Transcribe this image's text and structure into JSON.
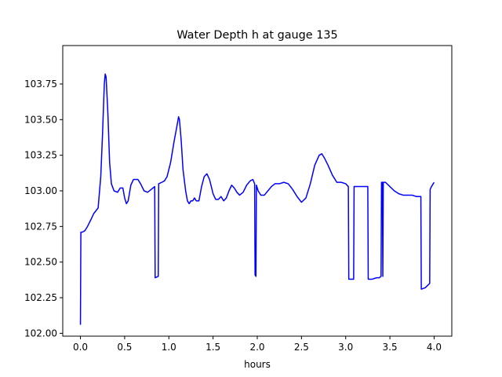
{
  "chart_data": {
    "type": "line",
    "title": "Water Depth h at gauge 135",
    "xlabel": "hours",
    "ylabel": "",
    "xlim": [
      -0.2,
      4.2
    ],
    "ylim": [
      101.98,
      104.02
    ],
    "xticks": [
      0.0,
      0.5,
      1.0,
      1.5,
      2.0,
      2.5,
      3.0,
      3.5,
      4.0
    ],
    "xtick_labels": [
      "0.0",
      "0.5",
      "1.0",
      "1.5",
      "2.0",
      "2.5",
      "3.0",
      "3.5",
      "4.0"
    ],
    "yticks": [
      102.0,
      102.25,
      102.5,
      102.75,
      103.0,
      103.25,
      103.5,
      103.75
    ],
    "ytick_labels": [
      "102.00",
      "102.25",
      "102.50",
      "102.75",
      "103.00",
      "103.25",
      "103.50",
      "103.75"
    ],
    "grid": false,
    "series": [
      {
        "color": "#0000ff",
        "points": [
          [
            0.0,
            102.06
          ],
          [
            0.005,
            102.71
          ],
          [
            0.02,
            102.71
          ],
          [
            0.05,
            102.72
          ],
          [
            0.08,
            102.75
          ],
          [
            0.12,
            102.8
          ],
          [
            0.15,
            102.84
          ],
          [
            0.2,
            102.88
          ],
          [
            0.23,
            103.1
          ],
          [
            0.25,
            103.4
          ],
          [
            0.27,
            103.75
          ],
          [
            0.28,
            103.82
          ],
          [
            0.29,
            103.8
          ],
          [
            0.31,
            103.55
          ],
          [
            0.33,
            103.2
          ],
          [
            0.35,
            103.05
          ],
          [
            0.38,
            103.0
          ],
          [
            0.42,
            102.99
          ],
          [
            0.45,
            103.02
          ],
          [
            0.48,
            103.02
          ],
          [
            0.5,
            102.95
          ],
          [
            0.52,
            102.91
          ],
          [
            0.54,
            102.93
          ],
          [
            0.57,
            103.04
          ],
          [
            0.6,
            103.08
          ],
          [
            0.65,
            103.08
          ],
          [
            0.68,
            103.05
          ],
          [
            0.72,
            103.0
          ],
          [
            0.76,
            102.99
          ],
          [
            0.8,
            103.01
          ],
          [
            0.84,
            103.03
          ],
          [
            0.845,
            102.39
          ],
          [
            0.88,
            102.4
          ],
          [
            0.885,
            103.05
          ],
          [
            0.92,
            103.06
          ],
          [
            0.95,
            103.07
          ],
          [
            0.98,
            103.1
          ],
          [
            1.02,
            103.2
          ],
          [
            1.06,
            103.35
          ],
          [
            1.09,
            103.45
          ],
          [
            1.11,
            103.52
          ],
          [
            1.12,
            103.5
          ],
          [
            1.14,
            103.35
          ],
          [
            1.16,
            103.15
          ],
          [
            1.19,
            103.0
          ],
          [
            1.21,
            102.93
          ],
          [
            1.23,
            102.91
          ],
          [
            1.25,
            102.93
          ],
          [
            1.27,
            102.93
          ],
          [
            1.29,
            102.95
          ],
          [
            1.31,
            102.93
          ],
          [
            1.34,
            102.93
          ],
          [
            1.37,
            103.03
          ],
          [
            1.4,
            103.1
          ],
          [
            1.43,
            103.12
          ],
          [
            1.46,
            103.08
          ],
          [
            1.5,
            102.98
          ],
          [
            1.53,
            102.94
          ],
          [
            1.56,
            102.94
          ],
          [
            1.59,
            102.96
          ],
          [
            1.62,
            102.93
          ],
          [
            1.65,
            102.95
          ],
          [
            1.68,
            103.0
          ],
          [
            1.71,
            103.04
          ],
          [
            1.74,
            103.02
          ],
          [
            1.77,
            102.99
          ],
          [
            1.8,
            102.97
          ],
          [
            1.84,
            102.99
          ],
          [
            1.88,
            103.04
          ],
          [
            1.92,
            103.07
          ],
          [
            1.95,
            103.08
          ],
          [
            1.97,
            103.05
          ],
          [
            1.975,
            102.41
          ],
          [
            1.985,
            102.4
          ],
          [
            1.99,
            103.04
          ],
          [
            2.01,
            103.0
          ],
          [
            2.04,
            102.97
          ],
          [
            2.08,
            102.97
          ],
          [
            2.12,
            103.0
          ],
          [
            2.16,
            103.03
          ],
          [
            2.2,
            103.05
          ],
          [
            2.25,
            103.05
          ],
          [
            2.3,
            103.06
          ],
          [
            2.35,
            103.05
          ],
          [
            2.4,
            103.01
          ],
          [
            2.45,
            102.96
          ],
          [
            2.5,
            102.92
          ],
          [
            2.55,
            102.95
          ],
          [
            2.6,
            103.05
          ],
          [
            2.65,
            103.18
          ],
          [
            2.7,
            103.25
          ],
          [
            2.73,
            103.26
          ],
          [
            2.76,
            103.23
          ],
          [
            2.8,
            103.18
          ],
          [
            2.85,
            103.11
          ],
          [
            2.9,
            103.06
          ],
          [
            2.95,
            103.06
          ],
          [
            3.0,
            103.05
          ],
          [
            3.03,
            103.03
          ],
          [
            3.035,
            102.38
          ],
          [
            3.09,
            102.38
          ],
          [
            3.095,
            103.03
          ],
          [
            3.15,
            103.03
          ],
          [
            3.2,
            103.03
          ],
          [
            3.25,
            103.03
          ],
          [
            3.255,
            102.38
          ],
          [
            3.3,
            102.38
          ],
          [
            3.35,
            102.39
          ],
          [
            3.38,
            102.39
          ],
          [
            3.4,
            102.4
          ],
          [
            3.405,
            103.06
          ],
          [
            3.415,
            103.06
          ],
          [
            3.42,
            102.4
          ],
          [
            3.425,
            103.06
          ],
          [
            3.45,
            103.06
          ],
          [
            3.5,
            103.03
          ],
          [
            3.55,
            103.0
          ],
          [
            3.6,
            102.98
          ],
          [
            3.65,
            102.97
          ],
          [
            3.7,
            102.97
          ],
          [
            3.75,
            102.97
          ],
          [
            3.8,
            102.96
          ],
          [
            3.85,
            102.96
          ],
          [
            3.855,
            102.31
          ],
          [
            3.9,
            102.32
          ],
          [
            3.95,
            102.35
          ],
          [
            3.955,
            103.01
          ],
          [
            3.97,
            103.03
          ],
          [
            4.0,
            103.06
          ]
        ]
      }
    ]
  }
}
